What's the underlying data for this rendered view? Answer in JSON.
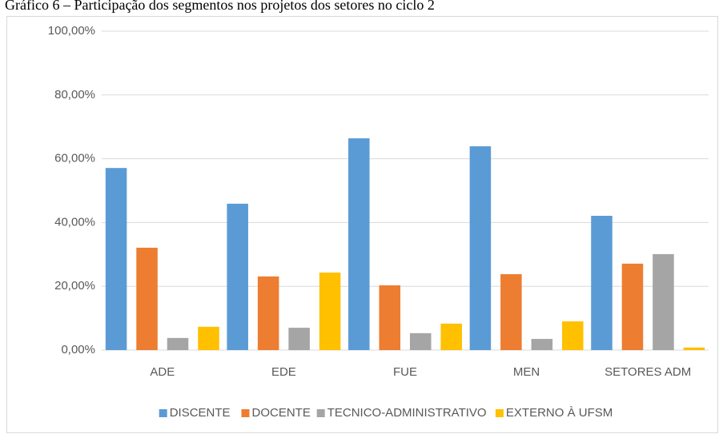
{
  "chart_data": {
    "type": "bar",
    "title": "Gráfico 6 – Participação dos segmentos nos projetos dos setores no ciclo 2",
    "categories": [
      "ADE",
      "EDE",
      "FUE",
      "MEN",
      "SETORES ADM"
    ],
    "series": [
      {
        "name": "DISCENTE",
        "color": "#5b9bd5",
        "values": [
          57.1,
          45.9,
          66.4,
          63.9,
          42.1
        ]
      },
      {
        "name": "DOCENTE",
        "color": "#ed7d31",
        "values": [
          32.1,
          23.1,
          20.3,
          23.8,
          27.1
        ]
      },
      {
        "name": "TECNICO-ADMINISTRATIVO",
        "color": "#a5a5a5",
        "values": [
          3.8,
          7.0,
          5.3,
          3.5,
          30.1
        ]
      },
      {
        "name": "EXTERNO À UFSM",
        "color": "#ffc000",
        "values": [
          7.3,
          24.3,
          8.3,
          9.0,
          0.8
        ]
      }
    ],
    "ylim": [
      0,
      100
    ],
    "yticks": [
      {
        "value": 0,
        "label": "0,00%"
      },
      {
        "value": 20,
        "label": "20,00%"
      },
      {
        "value": 40,
        "label": "40,00%"
      },
      {
        "value": 60,
        "label": "60,00%"
      },
      {
        "value": 80,
        "label": "80,00%"
      },
      {
        "value": 100,
        "label": "100,00%"
      }
    ],
    "grid": true,
    "legend": "bottom"
  }
}
